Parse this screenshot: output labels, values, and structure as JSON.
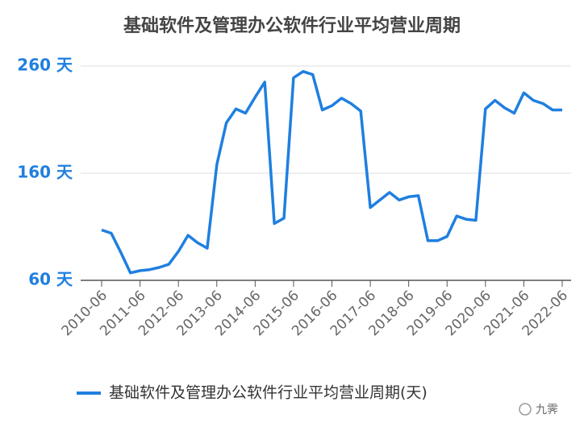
{
  "chart_data": {
    "type": "line",
    "title": "基础软件及管理办公软件行业平均营业周期",
    "categories": [
      "2010-06",
      null,
      null,
      null,
      "2011-06",
      null,
      null,
      null,
      "2012-06",
      null,
      null,
      null,
      "2013-06",
      null,
      null,
      null,
      "2014-06",
      null,
      null,
      null,
      "2015-06",
      null,
      null,
      null,
      "2016-06",
      null,
      null,
      null,
      "2017-06",
      null,
      null,
      null,
      "2018-06",
      null,
      null,
      null,
      "2019-06",
      null,
      null,
      null,
      "2020-06",
      null,
      null,
      null,
      "2021-06",
      null,
      null,
      null,
      "2022-06"
    ],
    "series": [
      {
        "name": "基础软件及管理办公软件行业平均营业周期(天)",
        "color": "#1f7fe0",
        "values": [
          107,
          104,
          86,
          67,
          69,
          70,
          72,
          75,
          87,
          102,
          95,
          90,
          168,
          207,
          220,
          216,
          231,
          245,
          113,
          118,
          249,
          255,
          252,
          219,
          223,
          230,
          225,
          218,
          128,
          135,
          142,
          135,
          138,
          139,
          97,
          97,
          101,
          120,
          117,
          116,
          220,
          228,
          221,
          216,
          235,
          228,
          225,
          219,
          219
        ]
      }
    ],
    "ylim": [
      60,
      260
    ],
    "yticks": [
      {
        "value": 60,
        "label": "60 天"
      },
      {
        "value": 160,
        "label": "160 天"
      },
      {
        "value": 260,
        "label": "260 天"
      }
    ],
    "grid": true,
    "legend": "bottom",
    "watermark": "九霁"
  }
}
